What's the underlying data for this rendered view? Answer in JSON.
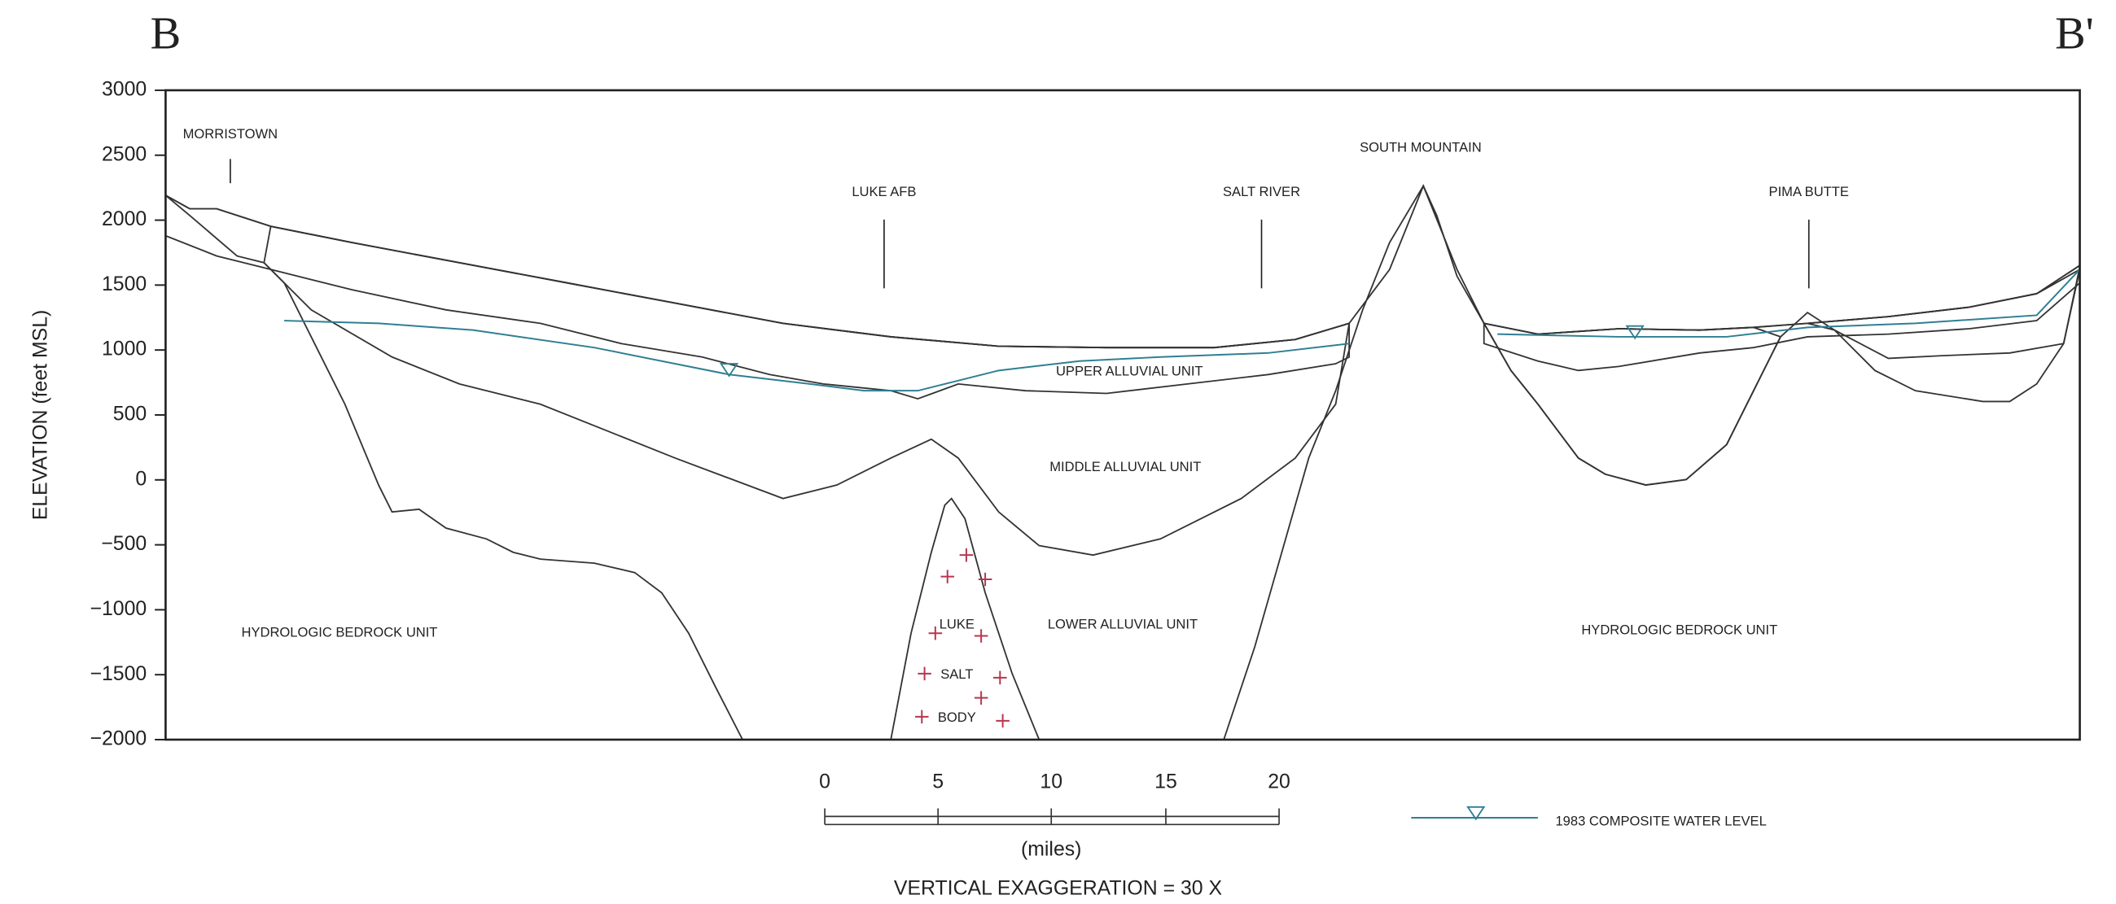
{
  "section": {
    "start_label": "B",
    "end_label": "B'"
  },
  "axis": {
    "label": "ELEVATION (feet MSL)",
    "ticks": [
      "3000",
      "2500",
      "2000",
      "1500",
      "1000",
      "500",
      "0",
      "−500",
      "−1000",
      "−1500",
      "−2000"
    ]
  },
  "landmarks": [
    "MORRISTOWN",
    "LUKE AFB",
    "SALT RIVER",
    "SOUTH MOUNTAIN",
    "PIMA BUTTE"
  ],
  "unit_labels": [
    "UPPER ALLUVIAL UNIT",
    "MIDDLE ALLUVIAL UNIT",
    "LOWER ALLUVIAL UNIT",
    "HYDROLOGIC BEDROCK UNIT",
    "HYDROLOGIC BEDROCK UNIT"
  ],
  "salt_body": [
    "LUKE",
    "SALT",
    "BODY"
  ],
  "scale_bar": {
    "ticks": [
      "0",
      "5",
      "10",
      "15",
      "20"
    ],
    "unit": "(miles)"
  },
  "note": "VERTICAL EXAGGERATION = 30 X",
  "legend": {
    "water_level": "1983 COMPOSITE WATER LEVEL"
  }
}
